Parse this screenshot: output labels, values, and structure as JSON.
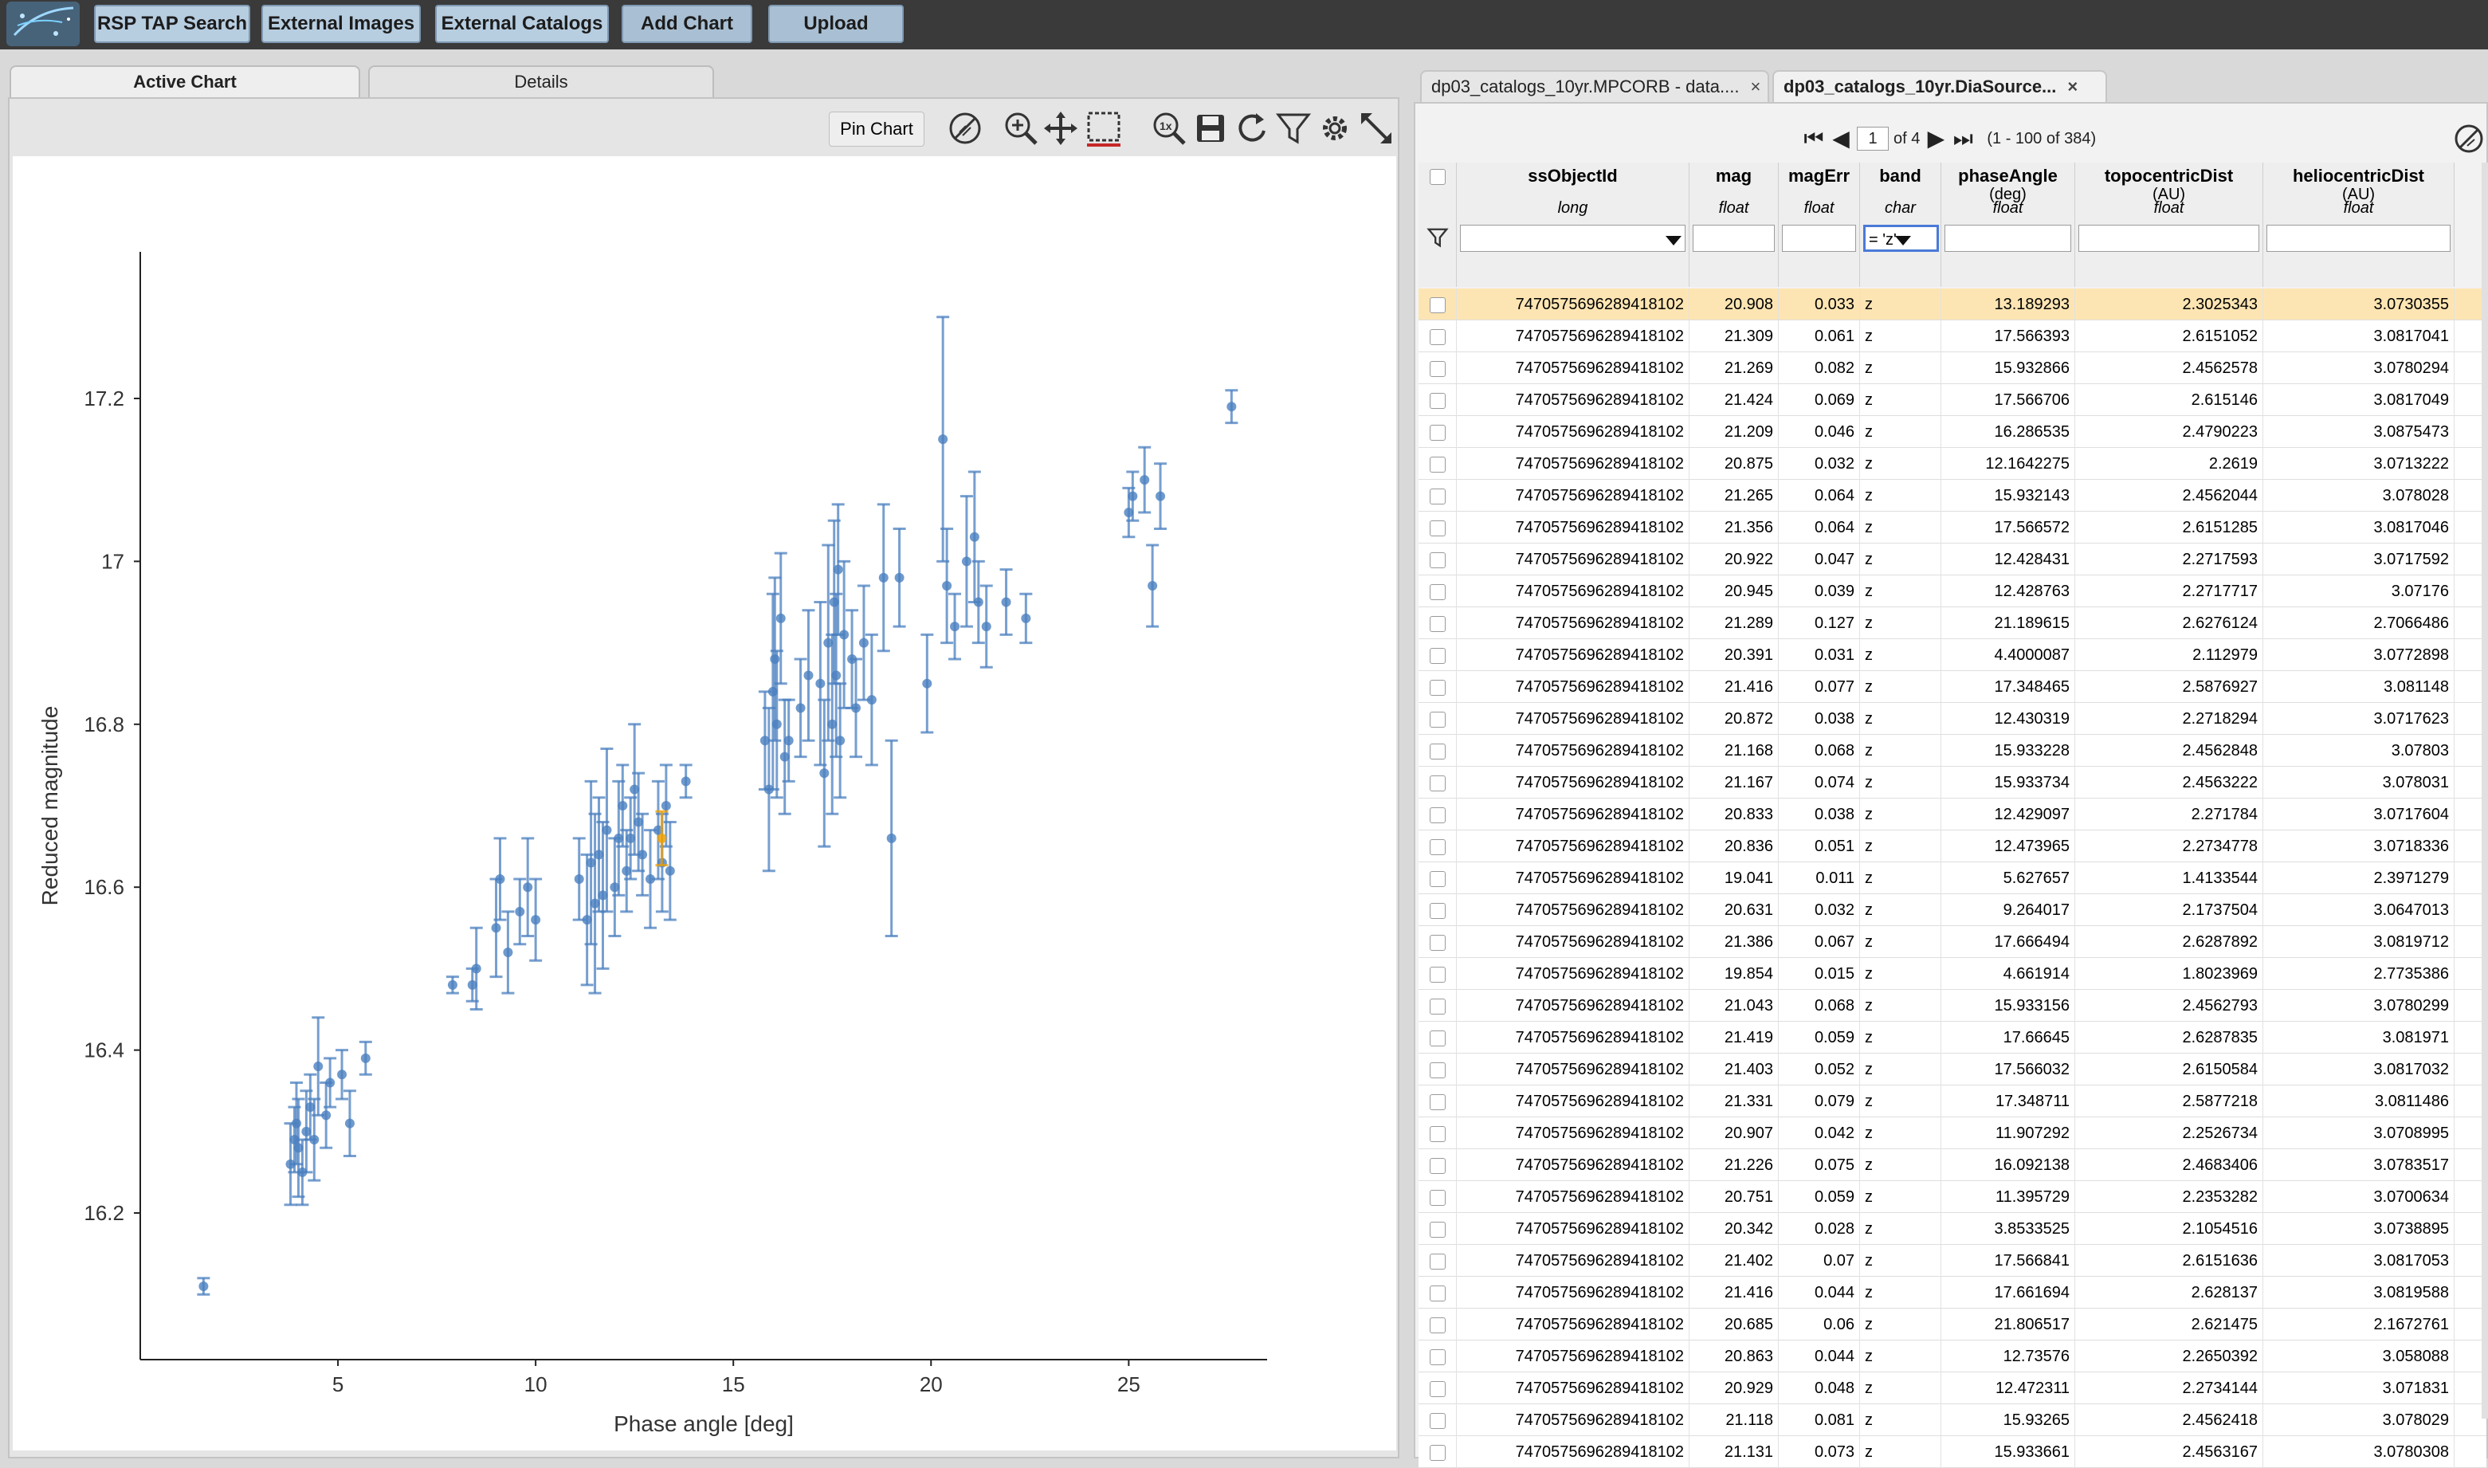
{
  "toolbar": {
    "buttons": [
      "RSP TAP Search",
      "External Images",
      "External Catalogs",
      "Add Chart",
      "Upload"
    ]
  },
  "left": {
    "tabs": [
      "Active Chart",
      "Details"
    ],
    "pin_label": "Pin Chart",
    "tool_icons": [
      "disable-selection-icon",
      "zoom-in-icon",
      "pan-icon",
      "select-box-icon",
      "zoom-1x-icon",
      "save-icon",
      "restore-icon",
      "filter-icon",
      "settings-icon",
      "expand-icon"
    ]
  },
  "right": {
    "tabs": [
      {
        "label": "dp03_catalogs_10yr.MPCORB - data....",
        "close": "×"
      },
      {
        "label": "dp03_catalogs_10yr.DiaSource...",
        "close": "×"
      }
    ],
    "pager": {
      "page": "1",
      "of": "of 4",
      "range": "(1 - 100 of 384)"
    },
    "columns": [
      {
        "name": "ssObjectId",
        "unit": "",
        "type": "long",
        "filter": ""
      },
      {
        "name": "mag",
        "unit": "",
        "type": "float",
        "filter": ""
      },
      {
        "name": "magErr",
        "unit": "",
        "type": "float",
        "filter": ""
      },
      {
        "name": "band",
        "unit": "",
        "type": "char",
        "filter": "= 'z'"
      },
      {
        "name": "phaseAngle",
        "unit": "(deg)",
        "type": "float",
        "filter": ""
      },
      {
        "name": "topocentricDist",
        "unit": "(AU)",
        "type": "float",
        "filter": ""
      },
      {
        "name": "heliocentricDist",
        "unit": "(AU)",
        "type": "float",
        "filter": ""
      }
    ],
    "rows": [
      [
        "7470575696289418102",
        "20.908",
        "0.033",
        "z",
        "13.189293",
        "2.3025343",
        "3.0730355"
      ],
      [
        "7470575696289418102",
        "21.309",
        "0.061",
        "z",
        "17.566393",
        "2.6151052",
        "3.0817041"
      ],
      [
        "7470575696289418102",
        "21.269",
        "0.082",
        "z",
        "15.932866",
        "2.4562578",
        "3.0780294"
      ],
      [
        "7470575696289418102",
        "21.424",
        "0.069",
        "z",
        "17.566706",
        "2.615146",
        "3.0817049"
      ],
      [
        "7470575696289418102",
        "21.209",
        "0.046",
        "z",
        "16.286535",
        "2.4790223",
        "3.0875473"
      ],
      [
        "7470575696289418102",
        "20.875",
        "0.032",
        "z",
        "12.1642275",
        "2.2619",
        "3.0713222"
      ],
      [
        "7470575696289418102",
        "21.265",
        "0.064",
        "z",
        "15.932143",
        "2.4562044",
        "3.078028"
      ],
      [
        "7470575696289418102",
        "21.356",
        "0.064",
        "z",
        "17.566572",
        "2.6151285",
        "3.0817046"
      ],
      [
        "7470575696289418102",
        "20.922",
        "0.047",
        "z",
        "12.428431",
        "2.2717593",
        "3.0717592"
      ],
      [
        "7470575696289418102",
        "20.945",
        "0.039",
        "z",
        "12.428763",
        "2.2717717",
        "3.07176"
      ],
      [
        "7470575696289418102",
        "21.289",
        "0.127",
        "z",
        "21.189615",
        "2.6276124",
        "2.7066486"
      ],
      [
        "7470575696289418102",
        "20.391",
        "0.031",
        "z",
        "4.4000087",
        "2.112979",
        "3.0772898"
      ],
      [
        "7470575696289418102",
        "21.416",
        "0.077",
        "z",
        "17.348465",
        "2.5876927",
        "3.081148"
      ],
      [
        "7470575696289418102",
        "20.872",
        "0.038",
        "z",
        "12.430319",
        "2.2718294",
        "3.0717623"
      ],
      [
        "7470575696289418102",
        "21.168",
        "0.068",
        "z",
        "15.933228",
        "2.4562848",
        "3.07803"
      ],
      [
        "7470575696289418102",
        "21.167",
        "0.074",
        "z",
        "15.933734",
        "2.4563222",
        "3.078031"
      ],
      [
        "7470575696289418102",
        "20.833",
        "0.038",
        "z",
        "12.429097",
        "2.271784",
        "3.0717604"
      ],
      [
        "7470575696289418102",
        "20.836",
        "0.051",
        "z",
        "12.473965",
        "2.2734778",
        "3.0718336"
      ],
      [
        "7470575696289418102",
        "19.041",
        "0.011",
        "z",
        "5.627657",
        "1.4133544",
        "2.3971279"
      ],
      [
        "7470575696289418102",
        "20.631",
        "0.032",
        "z",
        "9.264017",
        "2.1737504",
        "3.0647013"
      ],
      [
        "7470575696289418102",
        "21.386",
        "0.067",
        "z",
        "17.666494",
        "2.6287892",
        "3.0819712"
      ],
      [
        "7470575696289418102",
        "19.854",
        "0.015",
        "z",
        "4.661914",
        "1.8023969",
        "2.7735386"
      ],
      [
        "7470575696289418102",
        "21.043",
        "0.068",
        "z",
        "15.933156",
        "2.4562793",
        "3.0780299"
      ],
      [
        "7470575696289418102",
        "21.419",
        "0.059",
        "z",
        "17.66645",
        "2.6287835",
        "3.081971"
      ],
      [
        "7470575696289418102",
        "21.403",
        "0.052",
        "z",
        "17.566032",
        "2.6150584",
        "3.0817032"
      ],
      [
        "7470575696289418102",
        "21.331",
        "0.079",
        "z",
        "17.348711",
        "2.5877218",
        "3.0811486"
      ],
      [
        "7470575696289418102",
        "20.907",
        "0.042",
        "z",
        "11.907292",
        "2.2526734",
        "3.0708995"
      ],
      [
        "7470575696289418102",
        "21.226",
        "0.075",
        "z",
        "16.092138",
        "2.4683406",
        "3.0783517"
      ],
      [
        "7470575696289418102",
        "20.751",
        "0.059",
        "z",
        "11.395729",
        "2.2353282",
        "3.0700634"
      ],
      [
        "7470575696289418102",
        "20.342",
        "0.028",
        "z",
        "3.8533525",
        "2.1054516",
        "3.0738895"
      ],
      [
        "7470575696289418102",
        "21.402",
        "0.07",
        "z",
        "17.566841",
        "2.6151636",
        "3.0817053"
      ],
      [
        "7470575696289418102",
        "21.416",
        "0.044",
        "z",
        "17.661694",
        "2.628137",
        "3.0819588"
      ],
      [
        "7470575696289418102",
        "20.685",
        "0.06",
        "z",
        "21.806517",
        "2.621475",
        "2.1672761"
      ],
      [
        "7470575696289418102",
        "20.863",
        "0.044",
        "z",
        "12.73576",
        "2.2650392",
        "3.058088"
      ],
      [
        "7470575696289418102",
        "20.929",
        "0.048",
        "z",
        "12.472311",
        "2.2734144",
        "3.071831"
      ],
      [
        "7470575696289418102",
        "21.118",
        "0.081",
        "z",
        "15.93265",
        "2.4562418",
        "3.078029"
      ],
      [
        "7470575696289418102",
        "21.131",
        "0.073",
        "z",
        "15.933661",
        "2.4563167",
        "3.0780308"
      ]
    ],
    "selected_row_index": 0
  },
  "chart_data": {
    "type": "scatter",
    "xlabel": "Phase angle [deg]",
    "ylabel": "Reduced magnitude",
    "xlim": [
      0,
      28.5
    ],
    "ylim": [
      17.38,
      16.02
    ],
    "y_reversed": true,
    "x_ticks": [
      5,
      10,
      15,
      20,
      25
    ],
    "x_tick_labels": [
      "5",
      "10",
      "15",
      "20",
      "25"
    ],
    "y_ticks": [
      16.2,
      16.4,
      16.6,
      16.8,
      17,
      17.2
    ],
    "y_tick_labels": [
      "16.2",
      "16.4",
      "16.6",
      "16.8",
      "17",
      "17.2"
    ],
    "point_color": "#4a7fbf",
    "highlight_color": "#f0a000",
    "highlight_point": {
      "x": 13.19,
      "y": 16.66,
      "err": 0.033
    },
    "points": [
      {
        "x": 1.6,
        "y": 16.11,
        "err": 0.01
      },
      {
        "x": 3.8,
        "y": 16.26,
        "err": 0.05
      },
      {
        "x": 3.9,
        "y": 16.29,
        "err": 0.04
      },
      {
        "x": 3.95,
        "y": 16.31,
        "err": 0.05
      },
      {
        "x": 4.0,
        "y": 16.28,
        "err": 0.06
      },
      {
        "x": 4.1,
        "y": 16.25,
        "err": 0.04
      },
      {
        "x": 4.2,
        "y": 16.3,
        "err": 0.05
      },
      {
        "x": 4.3,
        "y": 16.33,
        "err": 0.04
      },
      {
        "x": 4.4,
        "y": 16.29,
        "err": 0.05
      },
      {
        "x": 4.5,
        "y": 16.38,
        "err": 0.06
      },
      {
        "x": 4.7,
        "y": 16.32,
        "err": 0.04
      },
      {
        "x": 4.8,
        "y": 16.36,
        "err": 0.03
      },
      {
        "x": 5.1,
        "y": 16.37,
        "err": 0.03
      },
      {
        "x": 5.3,
        "y": 16.31,
        "err": 0.04
      },
      {
        "x": 5.7,
        "y": 16.39,
        "err": 0.02
      },
      {
        "x": 7.9,
        "y": 16.48,
        "err": 0.01
      },
      {
        "x": 8.4,
        "y": 16.48,
        "err": 0.02
      },
      {
        "x": 8.5,
        "y": 16.5,
        "err": 0.05
      },
      {
        "x": 9.0,
        "y": 16.55,
        "err": 0.06
      },
      {
        "x": 9.1,
        "y": 16.61,
        "err": 0.05
      },
      {
        "x": 9.3,
        "y": 16.52,
        "err": 0.05
      },
      {
        "x": 9.6,
        "y": 16.57,
        "err": 0.04
      },
      {
        "x": 9.8,
        "y": 16.6,
        "err": 0.06
      },
      {
        "x": 10.0,
        "y": 16.56,
        "err": 0.05
      },
      {
        "x": 11.1,
        "y": 16.61,
        "err": 0.05
      },
      {
        "x": 11.3,
        "y": 16.56,
        "err": 0.08
      },
      {
        "x": 11.4,
        "y": 16.63,
        "err": 0.1
      },
      {
        "x": 11.5,
        "y": 16.58,
        "err": 0.11
      },
      {
        "x": 11.6,
        "y": 16.64,
        "err": 0.07
      },
      {
        "x": 11.7,
        "y": 16.59,
        "err": 0.09
      },
      {
        "x": 11.8,
        "y": 16.67,
        "err": 0.1
      },
      {
        "x": 12.0,
        "y": 16.6,
        "err": 0.06
      },
      {
        "x": 12.1,
        "y": 16.66,
        "err": 0.07
      },
      {
        "x": 12.2,
        "y": 16.7,
        "err": 0.05
      },
      {
        "x": 12.3,
        "y": 16.62,
        "err": 0.05
      },
      {
        "x": 12.4,
        "y": 16.66,
        "err": 0.05
      },
      {
        "x": 12.5,
        "y": 16.72,
        "err": 0.08
      },
      {
        "x": 12.6,
        "y": 16.68,
        "err": 0.06
      },
      {
        "x": 12.7,
        "y": 16.64,
        "err": 0.05
      },
      {
        "x": 12.9,
        "y": 16.61,
        "err": 0.06
      },
      {
        "x": 13.1,
        "y": 16.67,
        "err": 0.06
      },
      {
        "x": 13.2,
        "y": 16.63,
        "err": 0.06
      },
      {
        "x": 13.3,
        "y": 16.7,
        "err": 0.05
      },
      {
        "x": 13.4,
        "y": 16.62,
        "err": 0.06
      },
      {
        "x": 13.8,
        "y": 16.73,
        "err": 0.02
      },
      {
        "x": 15.8,
        "y": 16.78,
        "err": 0.06
      },
      {
        "x": 15.9,
        "y": 16.72,
        "err": 0.1
      },
      {
        "x": 16.0,
        "y": 16.84,
        "err": 0.12
      },
      {
        "x": 16.05,
        "y": 16.88,
        "err": 0.1
      },
      {
        "x": 16.1,
        "y": 16.8,
        "err": 0.09
      },
      {
        "x": 16.2,
        "y": 16.93,
        "err": 0.08
      },
      {
        "x": 16.3,
        "y": 16.76,
        "err": 0.07
      },
      {
        "x": 16.4,
        "y": 16.78,
        "err": 0.05
      },
      {
        "x": 16.7,
        "y": 16.82,
        "err": 0.06
      },
      {
        "x": 16.9,
        "y": 16.86,
        "err": 0.08
      },
      {
        "x": 17.2,
        "y": 16.85,
        "err": 0.1
      },
      {
        "x": 17.3,
        "y": 16.74,
        "err": 0.09
      },
      {
        "x": 17.4,
        "y": 16.9,
        "err": 0.12
      },
      {
        "x": 17.5,
        "y": 16.8,
        "err": 0.11
      },
      {
        "x": 17.55,
        "y": 16.95,
        "err": 0.1
      },
      {
        "x": 17.6,
        "y": 16.86,
        "err": 0.1
      },
      {
        "x": 17.65,
        "y": 16.99,
        "err": 0.08
      },
      {
        "x": 17.7,
        "y": 16.78,
        "err": 0.07
      },
      {
        "x": 17.8,
        "y": 16.91,
        "err": 0.09
      },
      {
        "x": 18.0,
        "y": 16.88,
        "err": 0.06
      },
      {
        "x": 18.1,
        "y": 16.82,
        "err": 0.06
      },
      {
        "x": 18.3,
        "y": 16.9,
        "err": 0.07
      },
      {
        "x": 18.5,
        "y": 16.83,
        "err": 0.08
      },
      {
        "x": 18.8,
        "y": 16.98,
        "err": 0.09
      },
      {
        "x": 19.0,
        "y": 16.66,
        "err": 0.12
      },
      {
        "x": 19.2,
        "y": 16.98,
        "err": 0.06
      },
      {
        "x": 19.9,
        "y": 16.85,
        "err": 0.06
      },
      {
        "x": 20.3,
        "y": 17.15,
        "err": 0.15
      },
      {
        "x": 20.4,
        "y": 16.97,
        "err": 0.07
      },
      {
        "x": 20.6,
        "y": 16.92,
        "err": 0.04
      },
      {
        "x": 20.9,
        "y": 17.0,
        "err": 0.08
      },
      {
        "x": 21.1,
        "y": 17.03,
        "err": 0.08
      },
      {
        "x": 21.2,
        "y": 16.95,
        "err": 0.05
      },
      {
        "x": 21.4,
        "y": 16.92,
        "err": 0.05
      },
      {
        "x": 21.9,
        "y": 16.95,
        "err": 0.04
      },
      {
        "x": 22.4,
        "y": 16.93,
        "err": 0.03
      },
      {
        "x": 25.0,
        "y": 17.06,
        "err": 0.03
      },
      {
        "x": 25.1,
        "y": 17.08,
        "err": 0.03
      },
      {
        "x": 25.4,
        "y": 17.1,
        "err": 0.04
      },
      {
        "x": 25.6,
        "y": 16.97,
        "err": 0.05
      },
      {
        "x": 25.8,
        "y": 17.08,
        "err": 0.04
      },
      {
        "x": 27.6,
        "y": 17.19,
        "err": 0.02
      }
    ]
  }
}
